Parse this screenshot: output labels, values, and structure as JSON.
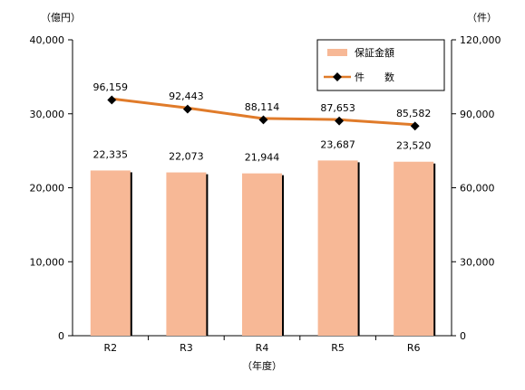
{
  "chart_data": {
    "type": "bar",
    "categories": [
      "R2",
      "R3",
      "R4",
      "R5",
      "R6"
    ],
    "series": [
      {
        "name": "保証金額",
        "type": "bar",
        "axis": "left",
        "values": [
          22335,
          22073,
          21944,
          23687,
          23520
        ],
        "labels": [
          "22,335",
          "22,073",
          "21,944",
          "23,687",
          "23,520"
        ],
        "color": "#f7b896"
      },
      {
        "name": "件　　数",
        "type": "line",
        "axis": "right",
        "values": [
          96159,
          92443,
          88114,
          87653,
          85582
        ],
        "labels": [
          "96,159",
          "92,443",
          "88,114",
          "87,653",
          "85,582"
        ],
        "color": "#e07b2a"
      }
    ],
    "xlabel": "（年度）",
    "y_left": {
      "unit": "（億円）",
      "lim": [
        0,
        40000
      ],
      "ticks": [
        0,
        10000,
        20000,
        30000,
        40000
      ],
      "tick_labels": [
        "0",
        "10,000",
        "20,000",
        "30,000",
        "40,000"
      ]
    },
    "y_right": {
      "unit": "（件）",
      "lim": [
        0,
        120000
      ],
      "ticks": [
        0,
        30000,
        60000,
        90000,
        120000
      ],
      "tick_labels": [
        "0",
        "30,000",
        "60,000",
        "90,000",
        "120,000"
      ]
    },
    "grid": false,
    "legend": "top-right"
  }
}
